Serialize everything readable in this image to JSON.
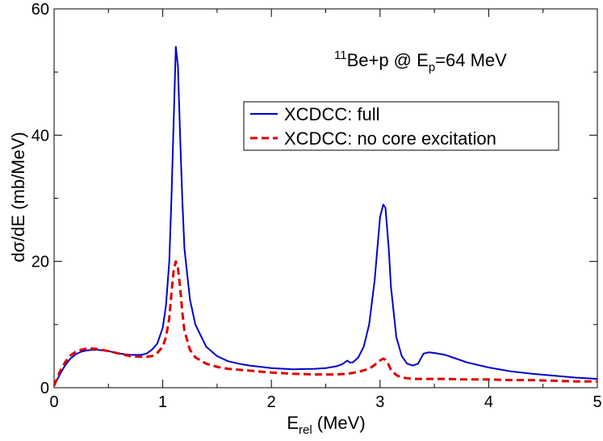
{
  "chart_data": {
    "type": "line",
    "xlabel": "E",
    "xlabel_sub": "rel",
    "xlabel_unit": " (MeV)",
    "ylabel": "dσ/dE (mb/MeV)",
    "xlim": [
      0,
      5
    ],
    "ylim": [
      0,
      60
    ],
    "x_ticks": [
      "0",
      "1",
      "2",
      "3",
      "4",
      "5"
    ],
    "y_ticks": [
      "0",
      "20",
      "40",
      "60"
    ],
    "grid": false,
    "legend_position": "upper-right",
    "annotation": {
      "sup": "11",
      "part1": "Be+p @  E",
      "sub": "p",
      "part2": "=64 MeV"
    },
    "series": [
      {
        "name": "XCDCC: full",
        "color": "#0000cc",
        "style": "solid",
        "x": [
          0.0,
          0.05,
          0.1,
          0.15,
          0.2,
          0.25,
          0.3,
          0.35,
          0.4,
          0.5,
          0.6,
          0.7,
          0.8,
          0.85,
          0.9,
          0.95,
          1.0,
          1.03,
          1.06,
          1.08,
          1.1,
          1.12,
          1.14,
          1.16,
          1.18,
          1.2,
          1.25,
          1.3,
          1.4,
          1.5,
          1.6,
          1.7,
          1.8,
          2.0,
          2.2,
          2.4,
          2.5,
          2.6,
          2.65,
          2.7,
          2.72,
          2.75,
          2.8,
          2.85,
          2.9,
          2.95,
          3.0,
          3.03,
          3.05,
          3.08,
          3.1,
          3.15,
          3.2,
          3.25,
          3.3,
          3.35,
          3.4,
          3.45,
          3.5,
          3.6,
          3.7,
          3.8,
          4.0,
          4.2,
          4.4,
          4.6,
          4.8,
          5.0
        ],
        "y": [
          0.3,
          2.0,
          3.5,
          4.6,
          5.3,
          5.7,
          5.9,
          6.0,
          6.0,
          5.8,
          5.4,
          5.2,
          5.2,
          5.4,
          6.0,
          7.0,
          9.5,
          13.0,
          20.0,
          30.0,
          42.0,
          54.0,
          51.0,
          40.0,
          30.0,
          22.0,
          14.0,
          10.0,
          6.5,
          5.0,
          4.2,
          3.8,
          3.5,
          3.1,
          2.9,
          3.0,
          3.1,
          3.4,
          3.7,
          4.3,
          4.0,
          4.0,
          4.8,
          6.5,
          10.0,
          17.0,
          27.0,
          29.0,
          28.5,
          22.0,
          16.0,
          8.0,
          5.0,
          3.8,
          3.5,
          3.8,
          5.4,
          5.6,
          5.5,
          5.2,
          4.6,
          4.0,
          3.2,
          2.6,
          2.2,
          1.9,
          1.6,
          1.4
        ]
      },
      {
        "name": "XCDCC: no core excitation",
        "color": "#dd0000",
        "style": "dashed",
        "x": [
          0.0,
          0.05,
          0.1,
          0.15,
          0.2,
          0.25,
          0.3,
          0.35,
          0.4,
          0.5,
          0.6,
          0.7,
          0.8,
          0.85,
          0.9,
          0.95,
          1.0,
          1.03,
          1.06,
          1.08,
          1.1,
          1.12,
          1.14,
          1.16,
          1.18,
          1.2,
          1.25,
          1.3,
          1.4,
          1.5,
          1.6,
          1.8,
          2.0,
          2.2,
          2.4,
          2.6,
          2.7,
          2.8,
          2.9,
          2.95,
          3.0,
          3.03,
          3.05,
          3.08,
          3.1,
          3.15,
          3.2,
          3.3,
          3.4,
          3.5,
          3.6,
          3.8,
          4.0,
          4.2,
          4.4,
          4.6,
          4.8,
          5.0
        ],
        "y": [
          0.3,
          2.4,
          4.0,
          5.1,
          5.7,
          6.0,
          6.2,
          6.2,
          6.1,
          5.8,
          5.4,
          5.0,
          4.9,
          4.9,
          5.0,
          5.5,
          6.5,
          8.0,
          11.0,
          15.0,
          18.5,
          20.0,
          19.0,
          16.0,
          12.0,
          9.0,
          6.0,
          4.8,
          3.8,
          3.3,
          3.0,
          2.7,
          2.4,
          2.2,
          2.1,
          2.1,
          2.2,
          2.5,
          3.0,
          3.6,
          4.3,
          4.6,
          4.4,
          3.6,
          2.8,
          2.0,
          1.6,
          1.4,
          1.4,
          1.4,
          1.4,
          1.3,
          1.3,
          1.2,
          1.2,
          1.1,
          1.0,
          1.0
        ]
      }
    ]
  }
}
